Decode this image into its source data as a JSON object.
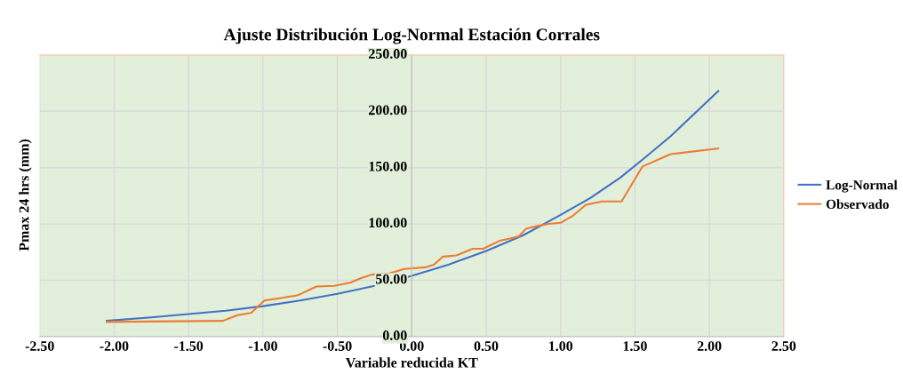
{
  "chart_data": {
    "type": "line",
    "title": "Ajuste Distribución Log-Normal Estación Corrales",
    "xlabel": "Variable reducida KT",
    "ylabel": "Pmax 24 hrs (mm)",
    "xlim": [
      -2.5,
      2.5
    ],
    "xticks": [
      {
        "value": -2.5,
        "label": "-2.50"
      },
      {
        "value": -2,
        "label": "-2.00"
      },
      {
        "value": -1.5,
        "label": "-1.50"
      },
      {
        "value": -1,
        "label": "-1.00"
      },
      {
        "value": -0.5,
        "label": "-0.50"
      },
      {
        "value": 0,
        "label": "0.00"
      },
      {
        "value": 0.5,
        "label": "0.50"
      },
      {
        "value": 1,
        "label": "1.00"
      },
      {
        "value": 1.5,
        "label": "1.50"
      },
      {
        "value": 2,
        "label": "2.00"
      },
      {
        "value": 2.5,
        "label": "2.50"
      }
    ],
    "ylim": [
      0,
      250
    ],
    "yticks": [
      {
        "value": 0,
        "label": "0.00"
      },
      {
        "value": 50,
        "label": "50.00"
      },
      {
        "value": 100,
        "label": "100.00"
      },
      {
        "value": 150,
        "label": "150.00"
      },
      {
        "value": 200,
        "label": "200.00"
      },
      {
        "value": 250,
        "label": "250.00"
      }
    ],
    "grid": true,
    "legend": "right",
    "marker": "none",
    "line_style": "solid",
    "series": [
      {
        "name": "Log-Normal",
        "color": "#4472c4",
        "x": [
          -2.05,
          -1.75,
          -1.5,
          -1.25,
          -1.0,
          -0.75,
          -0.5,
          -0.25,
          0,
          0.25,
          0.5,
          0.75,
          1.0,
          1.2,
          1.4,
          1.55,
          1.74,
          2.06
        ],
        "values": [
          14,
          17,
          20,
          23,
          27,
          32,
          38,
          45,
          54,
          64,
          76,
          90,
          108,
          123,
          141,
          157,
          178,
          218
        ]
      },
      {
        "name": "Observado",
        "color": "#ed7d31",
        "x": [
          -2.05,
          -1.27,
          -1.17,
          -1.08,
          -0.99,
          -0.89,
          -0.77,
          -0.64,
          -0.52,
          -0.41,
          -0.34,
          -0.27,
          -0.15,
          -0.05,
          0.09,
          0.15,
          0.21,
          0.3,
          0.41,
          0.48,
          0.59,
          0.66,
          0.72,
          0.77,
          0.84,
          0.92,
          1.0,
          1.08,
          1.17,
          1.28,
          1.41,
          1.55,
          1.74,
          2.06
        ],
        "values": [
          13,
          14,
          19,
          21,
          32,
          34,
          36.5,
          44.5,
          45,
          48,
          52,
          55,
          56,
          60,
          61.5,
          64,
          71,
          72,
          78,
          78,
          85,
          87,
          89,
          96,
          98,
          100,
          101,
          107,
          117,
          120,
          120,
          151,
          162,
          167
        ]
      }
    ]
  }
}
